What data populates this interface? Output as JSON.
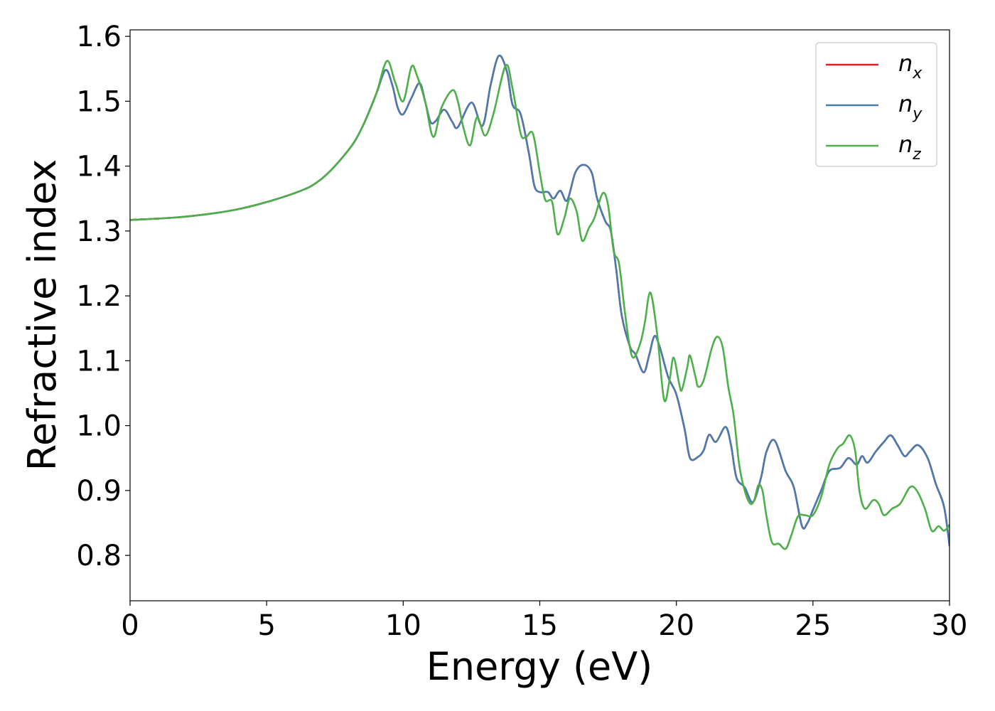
{
  "chart_data": {
    "type": "line",
    "title": "",
    "xlabel": "Energy (eV)",
    "ylabel": "Refractive index",
    "xlim": [
      0,
      30
    ],
    "ylim": [
      0.73,
      1.61
    ],
    "xticks": [
      0,
      5,
      10,
      15,
      20,
      25,
      30
    ],
    "xtick_labels": [
      "0",
      "5",
      "10",
      "15",
      "20",
      "25",
      "30"
    ],
    "yticks": [
      0.8,
      0.9,
      1.0,
      1.1,
      1.2,
      1.3,
      1.4,
      1.5,
      1.6
    ],
    "ytick_labels": [
      "0.8",
      "0.9",
      "1.0",
      "1.1",
      "1.2",
      "1.3",
      "1.4",
      "1.5",
      "1.6"
    ],
    "grid": false,
    "legend_position": "top-right",
    "series": [
      {
        "name": "n",
        "sub": "x",
        "color": "#e41a1c",
        "points": [
          [
            0,
            1.317
          ],
          [
            2,
            1.322
          ],
          [
            4,
            1.334
          ],
          [
            6,
            1.358
          ],
          [
            7,
            1.38
          ],
          [
            8,
            1.425
          ],
          [
            8.5,
            1.46
          ],
          [
            9,
            1.51
          ],
          [
            9.35,
            1.548
          ],
          [
            9.6,
            1.525
          ],
          [
            9.8,
            1.49
          ],
          [
            10,
            1.48
          ],
          [
            10.3,
            1.505
          ],
          [
            10.6,
            1.528
          ],
          [
            10.8,
            1.5
          ],
          [
            11,
            1.468
          ],
          [
            11.2,
            1.47
          ],
          [
            11.5,
            1.487
          ],
          [
            11.8,
            1.468
          ],
          [
            12,
            1.46
          ],
          [
            12.5,
            1.498
          ],
          [
            12.9,
            1.462
          ],
          [
            13.2,
            1.525
          ],
          [
            13.5,
            1.57
          ],
          [
            13.8,
            1.545
          ],
          [
            14,
            1.495
          ],
          [
            14.3,
            1.48
          ],
          [
            14.6,
            1.42
          ],
          [
            14.8,
            1.37
          ],
          [
            15,
            1.36
          ],
          [
            15.3,
            1.36
          ],
          [
            15.5,
            1.35
          ],
          [
            15.75,
            1.362
          ],
          [
            16,
            1.347
          ],
          [
            16.3,
            1.39
          ],
          [
            16.6,
            1.402
          ],
          [
            16.9,
            1.39
          ],
          [
            17.1,
            1.35
          ],
          [
            17.4,
            1.315
          ],
          [
            17.6,
            1.3
          ],
          [
            17.8,
            1.24
          ],
          [
            18,
            1.17
          ],
          [
            18.3,
            1.122
          ],
          [
            18.5,
            1.11
          ],
          [
            18.8,
            1.082
          ],
          [
            19,
            1.108
          ],
          [
            19.2,
            1.138
          ],
          [
            19.4,
            1.12
          ],
          [
            19.7,
            1.075
          ],
          [
            20,
            1.048
          ],
          [
            20.3,
            0.995
          ],
          [
            20.5,
            0.95
          ],
          [
            20.8,
            0.952
          ],
          [
            21,
            0.962
          ],
          [
            21.2,
            0.986
          ],
          [
            21.45,
            0.975
          ],
          [
            21.8,
            0.998
          ],
          [
            22,
            0.97
          ],
          [
            22.2,
            0.92
          ],
          [
            22.5,
            0.905
          ],
          [
            22.8,
            0.882
          ],
          [
            23.1,
            0.92
          ],
          [
            23.3,
            0.96
          ],
          [
            23.6,
            0.977
          ],
          [
            24,
            0.93
          ],
          [
            24.3,
            0.905
          ],
          [
            24.6,
            0.845
          ],
          [
            24.8,
            0.85
          ],
          [
            25,
            0.87
          ],
          [
            25.3,
            0.9
          ],
          [
            25.6,
            0.93
          ],
          [
            26,
            0.935
          ],
          [
            26.3,
            0.95
          ],
          [
            26.6,
            0.94
          ],
          [
            26.8,
            0.953
          ],
          [
            27,
            0.943
          ],
          [
            27.3,
            0.96
          ],
          [
            27.6,
            0.975
          ],
          [
            27.85,
            0.985
          ],
          [
            28.1,
            0.97
          ],
          [
            28.35,
            0.953
          ],
          [
            28.55,
            0.96
          ],
          [
            28.85,
            0.97
          ],
          [
            29.2,
            0.95
          ],
          [
            29.5,
            0.91
          ],
          [
            29.8,
            0.875
          ],
          [
            30,
            0.815
          ]
        ]
      },
      {
        "name": "n",
        "sub": "y",
        "color": "#4a7bb0",
        "points": [
          [
            0,
            1.317
          ],
          [
            2,
            1.322
          ],
          [
            4,
            1.334
          ],
          [
            6,
            1.358
          ],
          [
            7,
            1.38
          ],
          [
            8,
            1.425
          ],
          [
            8.5,
            1.46
          ],
          [
            9,
            1.51
          ],
          [
            9.35,
            1.548
          ],
          [
            9.6,
            1.525
          ],
          [
            9.8,
            1.49
          ],
          [
            10,
            1.48
          ],
          [
            10.3,
            1.505
          ],
          [
            10.6,
            1.528
          ],
          [
            10.8,
            1.5
          ],
          [
            11,
            1.468
          ],
          [
            11.2,
            1.47
          ],
          [
            11.5,
            1.487
          ],
          [
            11.8,
            1.468
          ],
          [
            12,
            1.46
          ],
          [
            12.5,
            1.498
          ],
          [
            12.9,
            1.462
          ],
          [
            13.2,
            1.525
          ],
          [
            13.5,
            1.57
          ],
          [
            13.8,
            1.545
          ],
          [
            14,
            1.495
          ],
          [
            14.3,
            1.48
          ],
          [
            14.6,
            1.42
          ],
          [
            14.8,
            1.37
          ],
          [
            15,
            1.36
          ],
          [
            15.3,
            1.36
          ],
          [
            15.5,
            1.35
          ],
          [
            15.75,
            1.362
          ],
          [
            16,
            1.347
          ],
          [
            16.3,
            1.39
          ],
          [
            16.6,
            1.402
          ],
          [
            16.9,
            1.39
          ],
          [
            17.1,
            1.35
          ],
          [
            17.4,
            1.315
          ],
          [
            17.6,
            1.3
          ],
          [
            17.8,
            1.24
          ],
          [
            18,
            1.17
          ],
          [
            18.3,
            1.122
          ],
          [
            18.5,
            1.11
          ],
          [
            18.8,
            1.082
          ],
          [
            19,
            1.108
          ],
          [
            19.2,
            1.138
          ],
          [
            19.4,
            1.12
          ],
          [
            19.7,
            1.075
          ],
          [
            20,
            1.048
          ],
          [
            20.3,
            0.995
          ],
          [
            20.5,
            0.95
          ],
          [
            20.8,
            0.952
          ],
          [
            21,
            0.962
          ],
          [
            21.2,
            0.986
          ],
          [
            21.45,
            0.975
          ],
          [
            21.8,
            0.998
          ],
          [
            22,
            0.97
          ],
          [
            22.2,
            0.92
          ],
          [
            22.5,
            0.905
          ],
          [
            22.8,
            0.882
          ],
          [
            23.1,
            0.92
          ],
          [
            23.3,
            0.96
          ],
          [
            23.6,
            0.977
          ],
          [
            24,
            0.93
          ],
          [
            24.3,
            0.905
          ],
          [
            24.6,
            0.845
          ],
          [
            24.8,
            0.85
          ],
          [
            25,
            0.87
          ],
          [
            25.3,
            0.9
          ],
          [
            25.6,
            0.93
          ],
          [
            26,
            0.935
          ],
          [
            26.3,
            0.95
          ],
          [
            26.6,
            0.94
          ],
          [
            26.8,
            0.953
          ],
          [
            27,
            0.943
          ],
          [
            27.3,
            0.96
          ],
          [
            27.6,
            0.975
          ],
          [
            27.85,
            0.985
          ],
          [
            28.1,
            0.97
          ],
          [
            28.35,
            0.953
          ],
          [
            28.55,
            0.96
          ],
          [
            28.85,
            0.97
          ],
          [
            29.2,
            0.95
          ],
          [
            29.5,
            0.91
          ],
          [
            29.8,
            0.875
          ],
          [
            30,
            0.815
          ]
        ]
      },
      {
        "name": "n",
        "sub": "z",
        "color": "#4daf4a",
        "points": [
          [
            0,
            1.317
          ],
          [
            2,
            1.322
          ],
          [
            4,
            1.334
          ],
          [
            6,
            1.358
          ],
          [
            7,
            1.38
          ],
          [
            8,
            1.425
          ],
          [
            8.5,
            1.46
          ],
          [
            9,
            1.51
          ],
          [
            9.4,
            1.562
          ],
          [
            9.7,
            1.53
          ],
          [
            10,
            1.5
          ],
          [
            10.3,
            1.553
          ],
          [
            10.5,
            1.54
          ],
          [
            10.8,
            1.5
          ],
          [
            11.1,
            1.445
          ],
          [
            11.4,
            1.49
          ],
          [
            11.8,
            1.517
          ],
          [
            12,
            1.5
          ],
          [
            12.2,
            1.46
          ],
          [
            12.45,
            1.432
          ],
          [
            12.7,
            1.475
          ],
          [
            13,
            1.447
          ],
          [
            13.3,
            1.48
          ],
          [
            13.75,
            1.555
          ],
          [
            14,
            1.52
          ],
          [
            14.3,
            1.45
          ],
          [
            14.5,
            1.445
          ],
          [
            14.75,
            1.45
          ],
          [
            15,
            1.39
          ],
          [
            15.2,
            1.348
          ],
          [
            15.45,
            1.345
          ],
          [
            15.65,
            1.295
          ],
          [
            15.9,
            1.32
          ],
          [
            16.1,
            1.35
          ],
          [
            16.35,
            1.33
          ],
          [
            16.55,
            1.285
          ],
          [
            16.8,
            1.305
          ],
          [
            17,
            1.32
          ],
          [
            17.3,
            1.358
          ],
          [
            17.5,
            1.34
          ],
          [
            17.7,
            1.27
          ],
          [
            17.9,
            1.25
          ],
          [
            18.1,
            1.18
          ],
          [
            18.3,
            1.12
          ],
          [
            18.45,
            1.105
          ],
          [
            18.7,
            1.13
          ],
          [
            18.85,
            1.16
          ],
          [
            19.05,
            1.205
          ],
          [
            19.3,
            1.14
          ],
          [
            19.55,
            1.04
          ],
          [
            19.75,
            1.07
          ],
          [
            19.9,
            1.105
          ],
          [
            20.1,
            1.065
          ],
          [
            20.2,
            1.055
          ],
          [
            20.4,
            1.09
          ],
          [
            20.5,
            1.108
          ],
          [
            20.7,
            1.075
          ],
          [
            20.8,
            1.06
          ],
          [
            21,
            1.07
          ],
          [
            21.3,
            1.12
          ],
          [
            21.5,
            1.137
          ],
          [
            21.7,
            1.12
          ],
          [
            21.9,
            1.06
          ],
          [
            22.1,
            1.015
          ],
          [
            22.3,
            0.94
          ],
          [
            22.5,
            0.9
          ],
          [
            22.7,
            0.88
          ],
          [
            22.85,
            0.885
          ],
          [
            23,
            0.908
          ],
          [
            23.15,
            0.9
          ],
          [
            23.3,
            0.86
          ],
          [
            23.5,
            0.82
          ],
          [
            23.75,
            0.818
          ],
          [
            24,
            0.81
          ],
          [
            24.2,
            0.83
          ],
          [
            24.45,
            0.86
          ],
          [
            24.7,
            0.862
          ],
          [
            25,
            0.862
          ],
          [
            25.3,
            0.89
          ],
          [
            25.6,
            0.94
          ],
          [
            25.9,
            0.965
          ],
          [
            26.1,
            0.972
          ],
          [
            26.35,
            0.985
          ],
          [
            26.55,
            0.96
          ],
          [
            26.7,
            0.9
          ],
          [
            26.9,
            0.872
          ],
          [
            27.2,
            0.885
          ],
          [
            27.4,
            0.88
          ],
          [
            27.6,
            0.862
          ],
          [
            27.9,
            0.872
          ],
          [
            28.2,
            0.88
          ],
          [
            28.55,
            0.905
          ],
          [
            28.8,
            0.9
          ],
          [
            29.1,
            0.872
          ],
          [
            29.35,
            0.838
          ],
          [
            29.6,
            0.845
          ],
          [
            29.8,
            0.838
          ],
          [
            30,
            0.847
          ]
        ]
      }
    ]
  }
}
